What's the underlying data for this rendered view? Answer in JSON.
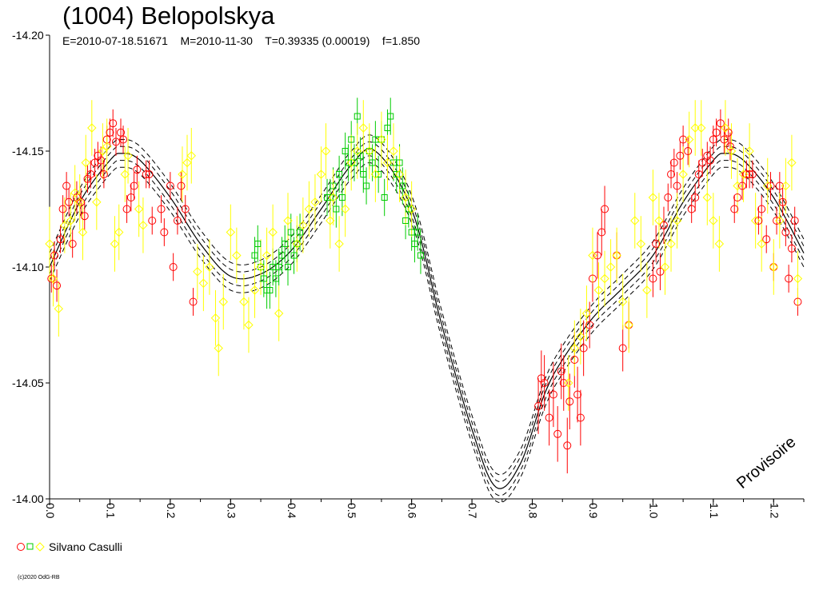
{
  "title": "(1004) Belopolskya",
  "subtitle": "E=2010-07-18.51671    M=2010-11-30    T=0.39335 (0.00019)    f=1.850",
  "watermark": "Provisoire",
  "copyright": "(c)2020 OdG-RB",
  "legend": {
    "label": "Silvano Casulli",
    "markers": [
      "circle",
      "square",
      "diamond"
    ],
    "colors": [
      "#ff0000",
      "#00cc00",
      "#ffff00"
    ]
  },
  "chart_data": {
    "type": "scatter",
    "xlim": [
      0.0,
      1.25
    ],
    "ylim": [
      -14.2,
      -14.0
    ],
    "y_reversed": true,
    "x_ticks": [
      "0.0",
      "0.1",
      "0.2",
      "0.3",
      "0.4",
      "0.5",
      "0.6",
      "0.7",
      "0.8",
      "0.9",
      "1.0",
      "1.1",
      "1.2"
    ],
    "y_ticks": [
      "-14.20",
      "-14.15",
      "-14.10",
      "-14.05",
      "-14.00"
    ],
    "fit_curve": {
      "x": [
        0.0,
        0.05,
        0.1,
        0.12,
        0.15,
        0.2,
        0.25,
        0.3,
        0.35,
        0.4,
        0.45,
        0.5,
        0.54,
        0.6,
        0.65,
        0.7,
        0.74,
        0.78,
        0.82,
        0.85,
        0.9,
        0.95,
        1.0,
        1.05,
        1.1,
        1.12,
        1.15,
        1.2,
        1.25
      ],
      "y": [
        -14.1,
        -14.128,
        -14.146,
        -14.149,
        -14.146,
        -14.13,
        -14.11,
        -14.096,
        -14.097,
        -14.107,
        -14.125,
        -14.144,
        -14.15,
        -14.125,
        -14.075,
        -14.03,
        -14.005,
        -14.015,
        -14.045,
        -14.06,
        -14.078,
        -14.091,
        -14.105,
        -14.128,
        -14.146,
        -14.149,
        -14.146,
        -14.13,
        -14.106
      ]
    },
    "curve_offsets": [
      -0.003,
      -0.006
    ],
    "series": [
      {
        "marker": "circle",
        "color": "#ff0000",
        "x": [
          0.003,
          0.008,
          0.012,
          0.018,
          0.022,
          0.028,
          0.032,
          0.038,
          0.045,
          0.052,
          0.058,
          0.063,
          0.068,
          0.075,
          0.08,
          0.085,
          0.09,
          0.095,
          0.1,
          0.105,
          0.11,
          0.118,
          0.122,
          0.128,
          0.135,
          0.14,
          0.145,
          0.16,
          0.165,
          0.17,
          0.185,
          0.19,
          0.2,
          0.205,
          0.212,
          0.218,
          0.225,
          0.238,
          0.81,
          0.815,
          0.82,
          0.828,
          0.835,
          0.842,
          0.848,
          0.852,
          0.858,
          0.862,
          0.87,
          0.875,
          0.88,
          0.885,
          0.895,
          0.9,
          0.908,
          0.915,
          0.92,
          0.94,
          0.95,
          0.96,
          1.0,
          1.005,
          1.012,
          1.018,
          1.025,
          1.03,
          1.035,
          1.04,
          1.045,
          1.05,
          1.058,
          1.064,
          1.07,
          1.076,
          1.082,
          1.09,
          1.095,
          1.1,
          1.105,
          1.112,
          1.118,
          1.125,
          1.128,
          1.135,
          1.14,
          1.148,
          1.155,
          1.16,
          1.165,
          1.175,
          1.18,
          1.188,
          1.195,
          1.2,
          1.205,
          1.21,
          1.215,
          1.22,
          1.225,
          1.23,
          1.235,
          1.24
        ],
        "y": [
          -14.095,
          -14.105,
          -14.092,
          -14.112,
          -14.125,
          -14.135,
          -14.128,
          -14.11,
          -14.13,
          -14.128,
          -14.122,
          -14.138,
          -14.14,
          -14.145,
          -14.148,
          -14.146,
          -14.14,
          -14.155,
          -14.158,
          -14.162,
          -14.154,
          -14.158,
          -14.155,
          -14.125,
          -14.13,
          -14.135,
          -14.142,
          -14.14,
          -14.14,
          -14.12,
          -14.125,
          -14.115,
          -14.135,
          -14.1,
          -14.12,
          -14.135,
          -14.125,
          -14.085,
          -14.04,
          -14.052,
          -14.05,
          -14.035,
          -14.045,
          -14.028,
          -14.055,
          -14.05,
          -14.023,
          -14.042,
          -14.06,
          -14.045,
          -14.035,
          -14.065,
          -14.075,
          -14.095,
          -14.105,
          -14.115,
          -14.125,
          -14.105,
          -14.065,
          -14.075,
          -14.095,
          -14.11,
          -14.098,
          -14.118,
          -14.13,
          -14.14,
          -14.145,
          -14.135,
          -14.148,
          -14.155,
          -14.15,
          -14.125,
          -14.13,
          -14.14,
          -14.145,
          -14.148,
          -14.146,
          -14.155,
          -14.158,
          -14.162,
          -14.155,
          -14.158,
          -14.152,
          -14.125,
          -14.13,
          -14.135,
          -14.14,
          -14.14,
          -14.14,
          -14.12,
          -14.125,
          -14.112,
          -14.135,
          -14.1,
          -14.12,
          -14.135,
          -14.128,
          -14.115,
          -14.095,
          -14.108,
          -14.12,
          -14.085
        ],
        "err": [
          0.006,
          0.006,
          0.007,
          0.006,
          0.006,
          0.006,
          0.006,
          0.006,
          0.007,
          0.006,
          0.006,
          0.006,
          0.006,
          0.006,
          0.006,
          0.006,
          0.006,
          0.006,
          0.006,
          0.006,
          0.006,
          0.006,
          0.006,
          0.006,
          0.006,
          0.006,
          0.006,
          0.006,
          0.006,
          0.006,
          0.006,
          0.006,
          0.006,
          0.006,
          0.006,
          0.006,
          0.006,
          0.006,
          0.012,
          0.012,
          0.012,
          0.012,
          0.014,
          0.012,
          0.012,
          0.012,
          0.012,
          0.012,
          0.012,
          0.012,
          0.012,
          0.012,
          0.01,
          0.01,
          0.01,
          0.01,
          0.01,
          0.01,
          0.01,
          0.01,
          0.008,
          0.008,
          0.008,
          0.008,
          0.006,
          0.006,
          0.006,
          0.006,
          0.006,
          0.006,
          0.006,
          0.006,
          0.006,
          0.006,
          0.006,
          0.006,
          0.006,
          0.006,
          0.006,
          0.006,
          0.006,
          0.006,
          0.006,
          0.006,
          0.006,
          0.006,
          0.006,
          0.006,
          0.006,
          0.006,
          0.006,
          0.006,
          0.006,
          0.006,
          0.006,
          0.006,
          0.006,
          0.006,
          0.006,
          0.006,
          0.006,
          0.006
        ]
      },
      {
        "marker": "square",
        "color": "#00cc00",
        "x": [
          0.34,
          0.345,
          0.35,
          0.355,
          0.36,
          0.365,
          0.37,
          0.375,
          0.38,
          0.385,
          0.39,
          0.395,
          0.4,
          0.405,
          0.41,
          0.415,
          0.46,
          0.465,
          0.47,
          0.475,
          0.48,
          0.485,
          0.49,
          0.495,
          0.5,
          0.505,
          0.51,
          0.515,
          0.52,
          0.525,
          0.53,
          0.535,
          0.54,
          0.545,
          0.55,
          0.555,
          0.56,
          0.565,
          0.57,
          0.575,
          0.58,
          0.585,
          0.59,
          0.595,
          0.6,
          0.605,
          0.61,
          0.615
        ],
        "y": [
          -14.105,
          -14.11,
          -14.1,
          -14.095,
          -14.09,
          -14.09,
          -14.1,
          -14.095,
          -14.1,
          -14.105,
          -14.11,
          -14.1,
          -14.115,
          -14.105,
          -14.11,
          -14.115,
          -14.13,
          -14.13,
          -14.135,
          -14.125,
          -14.14,
          -14.13,
          -14.15,
          -14.145,
          -14.155,
          -14.145,
          -14.165,
          -14.148,
          -14.14,
          -14.135,
          -14.15,
          -14.145,
          -14.155,
          -14.14,
          -14.155,
          -14.13,
          -14.16,
          -14.165,
          -14.145,
          -14.14,
          -14.145,
          -14.135,
          -14.12,
          -14.125,
          -14.115,
          -14.11,
          -14.115,
          -14.105
        ],
        "err": [
          0.008,
          0.008,
          0.008,
          0.008,
          0.008,
          0.008,
          0.008,
          0.008,
          0.008,
          0.008,
          0.008,
          0.008,
          0.008,
          0.008,
          0.008,
          0.008,
          0.008,
          0.008,
          0.008,
          0.008,
          0.008,
          0.008,
          0.008,
          0.008,
          0.008,
          0.008,
          0.008,
          0.008,
          0.008,
          0.008,
          0.008,
          0.008,
          0.008,
          0.008,
          0.008,
          0.008,
          0.008,
          0.008,
          0.008,
          0.008,
          0.008,
          0.008,
          0.008,
          0.008,
          0.008,
          0.008,
          0.008,
          0.008
        ]
      },
      {
        "marker": "diamond",
        "color": "#ffff00",
        "x": [
          0.0,
          0.006,
          0.015,
          0.025,
          0.035,
          0.042,
          0.05,
          0.055,
          0.06,
          0.07,
          0.078,
          0.088,
          0.095,
          0.108,
          0.115,
          0.125,
          0.13,
          0.148,
          0.155,
          0.22,
          0.228,
          0.235,
          0.245,
          0.255,
          0.265,
          0.275,
          0.28,
          0.288,
          0.3,
          0.31,
          0.322,
          0.33,
          0.34,
          0.35,
          0.36,
          0.37,
          0.38,
          0.395,
          0.41,
          0.42,
          0.43,
          0.44,
          0.45,
          0.458,
          0.465,
          0.47,
          0.48,
          0.49,
          0.5,
          0.51,
          0.52,
          0.53,
          0.54,
          0.55,
          0.56,
          0.57,
          0.58,
          0.59,
          0.6,
          0.86,
          0.87,
          0.88,
          0.89,
          0.9,
          0.91,
          0.92,
          0.93,
          0.94,
          0.95,
          0.96,
          0.97,
          0.98,
          0.99,
          1.0,
          1.01,
          1.02,
          1.03,
          1.04,
          1.05,
          1.06,
          1.07,
          1.08,
          1.09,
          1.1,
          1.11,
          1.12,
          1.13,
          1.14,
          1.15,
          1.16,
          1.17,
          1.18,
          1.19,
          1.2,
          1.21,
          1.22,
          1.23,
          1.24
        ],
        "y": [
          -14.11,
          -14.095,
          -14.082,
          -14.118,
          -14.12,
          -14.132,
          -14.128,
          -14.115,
          -14.145,
          -14.16,
          -14.128,
          -14.15,
          -14.152,
          -14.11,
          -14.115,
          -14.14,
          -14.148,
          -14.125,
          -14.118,
          -14.14,
          -14.145,
          -14.148,
          -14.098,
          -14.093,
          -14.1,
          -14.078,
          -14.065,
          -14.085,
          -14.115,
          -14.105,
          -14.085,
          -14.075,
          -14.09,
          -14.1,
          -14.105,
          -14.115,
          -14.08,
          -14.12,
          -14.11,
          -14.118,
          -14.125,
          -14.128,
          -14.14,
          -14.15,
          -14.12,
          -14.13,
          -14.11,
          -14.125,
          -14.145,
          -14.15,
          -14.16,
          -14.15,
          -14.14,
          -14.155,
          -14.145,
          -14.15,
          -14.14,
          -14.13,
          -14.125,
          -14.05,
          -14.065,
          -14.07,
          -14.08,
          -14.105,
          -14.09,
          -14.095,
          -14.1,
          -14.105,
          -14.085,
          -14.075,
          -14.12,
          -14.11,
          -14.09,
          -14.13,
          -14.12,
          -14.1,
          -14.11,
          -14.12,
          -14.14,
          -14.155,
          -14.16,
          -14.16,
          -14.13,
          -14.12,
          -14.11,
          -14.16,
          -14.15,
          -14.135,
          -14.14,
          -14.15,
          -14.12,
          -14.11,
          -14.135,
          -14.1,
          -14.12,
          -14.135,
          -14.145,
          -14.095
        ],
        "err": [
          0.016,
          0.012,
          0.012,
          0.012,
          0.012,
          0.012,
          0.012,
          0.012,
          0.012,
          0.012,
          0.012,
          0.012,
          0.012,
          0.012,
          0.012,
          0.012,
          0.012,
          0.012,
          0.012,
          0.012,
          0.012,
          0.012,
          0.012,
          0.012,
          0.012,
          0.012,
          0.012,
          0.012,
          0.012,
          0.012,
          0.012,
          0.012,
          0.012,
          0.012,
          0.012,
          0.012,
          0.012,
          0.012,
          0.012,
          0.012,
          0.012,
          0.012,
          0.012,
          0.012,
          0.012,
          0.012,
          0.012,
          0.012,
          0.012,
          0.012,
          0.012,
          0.012,
          0.012,
          0.012,
          0.012,
          0.012,
          0.012,
          0.012,
          0.012,
          0.012,
          0.012,
          0.012,
          0.012,
          0.012,
          0.012,
          0.012,
          0.012,
          0.012,
          0.012,
          0.012,
          0.012,
          0.012,
          0.012,
          0.012,
          0.012,
          0.012,
          0.012,
          0.012,
          0.012,
          0.012,
          0.012,
          0.012,
          0.012,
          0.012,
          0.012,
          0.012,
          0.012,
          0.012,
          0.012,
          0.012,
          0.012,
          0.012,
          0.012,
          0.012,
          0.012,
          0.012,
          0.012,
          0.012
        ]
      }
    ]
  }
}
